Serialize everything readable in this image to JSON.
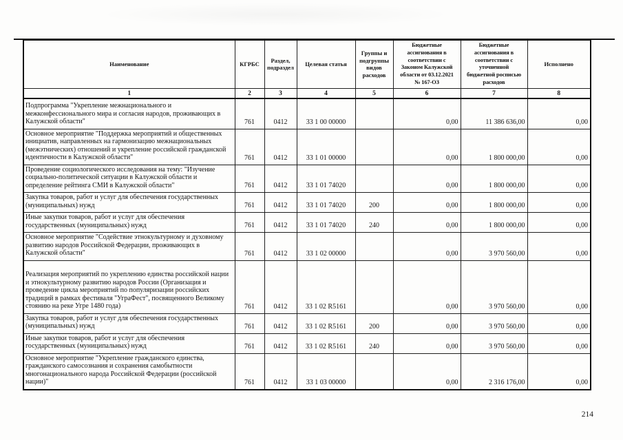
{
  "page": {
    "number": "214"
  },
  "table": {
    "columns": [
      {
        "label": "Наименование",
        "num": "1"
      },
      {
        "label": "КГРБС",
        "num": "2"
      },
      {
        "label": "Раздел,\nподраздел",
        "num": "3"
      },
      {
        "label": "Целевая статья",
        "num": "4"
      },
      {
        "label": "Группы и\nподгруппы\nвидов\nрасходов",
        "num": "5"
      },
      {
        "label": "Бюджетные\nассигнования в\nсоответствии с\nЗаконом Калужской\nобласти от 03.12.2021\n№ 167-ОЗ",
        "num": "6"
      },
      {
        "label": "Бюджетные\nассигнования в\nсоответствии с\nуточненной\nбюджетной росписью\nрасходов",
        "num": "7"
      },
      {
        "label": "Исполнено",
        "num": "8"
      }
    ],
    "rows": [
      {
        "name": "Подпрограмма \"Укрепление межнационального и межконфессионального мира и согласия народов, проживающих в Калужской области\"",
        "kgrbs": "761",
        "razdel": "0412",
        "target_article": "33 1 00 00000",
        "expense_group": "",
        "law_amount": "0,00",
        "refined_amount": "11 386 636,00",
        "executed": "0,00"
      },
      {
        "name": "Основное мероприятие \"Поддержка мероприятий и общественных инициатив, направленных на гармонизацию межнациональных (межэтнических) отношений и укрепление российской гражданской идентичности в Калужской области\"",
        "kgrbs": "761",
        "razdel": "0412",
        "target_article": "33 1 01 00000",
        "expense_group": "",
        "law_amount": "0,00",
        "refined_amount": "1 800 000,00",
        "executed": "0,00"
      },
      {
        "name": "Проведение социологического исследования на тему: \"Изучение социально-политической ситуации в Калужской области и определение рейтинга СМИ в Калужской области\"",
        "kgrbs": "761",
        "razdel": "0412",
        "target_article": "33 1 01 74020",
        "expense_group": "",
        "law_amount": "0,00",
        "refined_amount": "1 800 000,00",
        "executed": "0,00"
      },
      {
        "name": "Закупка товаров, работ и услуг для обеспечения государственных (муниципальных) нужд",
        "kgrbs": "761",
        "razdel": "0412",
        "target_article": "33 1 01 74020",
        "expense_group": "200",
        "law_amount": "0,00",
        "refined_amount": "1 800 000,00",
        "executed": "0,00"
      },
      {
        "name": "Иные закупки товаров, работ и услуг для обеспечения государственных (муниципальных) нужд",
        "kgrbs": "761",
        "razdel": "0412",
        "target_article": "33 1 01 74020",
        "expense_group": "240",
        "law_amount": "0,00",
        "refined_amount": "1 800 000,00",
        "executed": "0,00"
      },
      {
        "name": "Основное мероприятие \"Содействие этнокультурному и духовному развитию народов Российской Федерации, проживающих в Калужской области\"",
        "kgrbs": "761",
        "razdel": "0412",
        "target_article": "33 1 02 00000",
        "expense_group": "",
        "law_amount": "0,00",
        "refined_amount": "3 970 560,00",
        "executed": "0,00"
      },
      {
        "name": "Реализация мероприятий по укреплению единства российской нации и этнокультурному развитию народов России (Организация и проведение цикла мероприятий по популяризации российских традиций в рамках фестиваля \"УграФест\", посвященного Великому стоянию на реке Угре 1480 года)",
        "kgrbs": "761",
        "razdel": "0412",
        "target_article": "33 1 02 R5161",
        "expense_group": "",
        "law_amount": "0,00",
        "refined_amount": "3 970 560,00",
        "executed": "0,00"
      },
      {
        "name": "Закупка товаров, работ и услуг для обеспечения государственных (муниципальных) нужд",
        "kgrbs": "761",
        "razdel": "0412",
        "target_article": "33 1 02 R5161",
        "expense_group": "200",
        "law_amount": "0,00",
        "refined_amount": "3 970 560,00",
        "executed": "0,00"
      },
      {
        "name": "Иные закупки товаров, работ и услуг для обеспечения государственных (муниципальных) нужд",
        "kgrbs": "761",
        "razdel": "0412",
        "target_article": "33 1 02 R5161",
        "expense_group": "240",
        "law_amount": "0,00",
        "refined_amount": "3 970 560,00",
        "executed": "0,00"
      },
      {
        "name": "Основное мероприятие \"Укрепление гражданского единства, гражданского самосознания и сохранения самобытности многонационального народа Российской Федерации (российской нации)\"",
        "kgrbs": "761",
        "razdel": "0412",
        "target_article": "33 1 03 00000",
        "expense_group": "",
        "law_amount": "0,00",
        "refined_amount": "2 316 176,00",
        "executed": "0,00"
      }
    ]
  }
}
